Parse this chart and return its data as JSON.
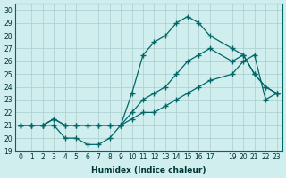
{
  "xlabel": "Humidex (Indice chaleur)",
  "ylabel": "",
  "bg_color": "#d0eeee",
  "grid_color": "#aacccc",
  "line_color": "#006666",
  "x": [
    0,
    1,
    2,
    3,
    4,
    5,
    6,
    7,
    8,
    9,
    10,
    11,
    12,
    13,
    14,
    15,
    16,
    17,
    19,
    20,
    21,
    22,
    23
  ],
  "line1": [
    21,
    21,
    21,
    21,
    20,
    20,
    19.5,
    19.5,
    20,
    21,
    23.5,
    26.5,
    27.5,
    28,
    29,
    29.5,
    29,
    28,
    27,
    26.5,
    25,
    24,
    23.5
  ],
  "line2": [
    21,
    21,
    21,
    21.5,
    21,
    21,
    21,
    21,
    21,
    21,
    22,
    23,
    23.5,
    24,
    25,
    26,
    26.5,
    27,
    26,
    26.5,
    25,
    24,
    23.5
  ],
  "line3": [
    21,
    21,
    21,
    21.5,
    21,
    21,
    21,
    21,
    21,
    21,
    21.5,
    22,
    22,
    22.5,
    23,
    23.5,
    24,
    24.5,
    25,
    26,
    26.5,
    23,
    23.5
  ],
  "xlim": [
    -0.5,
    23.5
  ],
  "ylim": [
    19,
    30.5
  ],
  "yticks": [
    19,
    20,
    21,
    22,
    23,
    24,
    25,
    26,
    27,
    28,
    29,
    30
  ],
  "xticks": [
    0,
    1,
    2,
    3,
    4,
    5,
    6,
    7,
    8,
    9,
    10,
    11,
    12,
    13,
    14,
    15,
    16,
    17,
    19,
    20,
    21,
    22,
    23
  ],
  "xtick_labels": [
    "0",
    "1",
    "2",
    "3",
    "4",
    "5",
    "6",
    "7",
    "8",
    "9",
    "10",
    "11",
    "12",
    "13",
    "14",
    "15",
    "16",
    "17",
    "19",
    "20",
    "21",
    "22",
    "23"
  ]
}
